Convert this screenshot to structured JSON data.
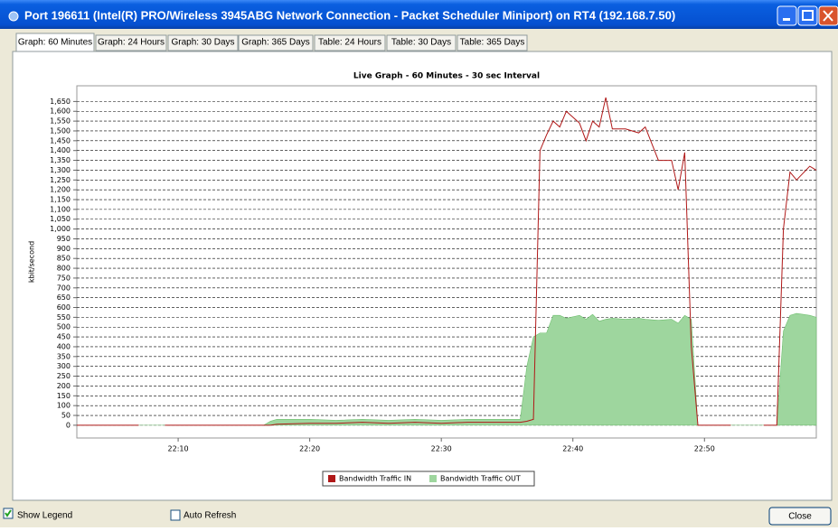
{
  "window": {
    "title": "Port 196611 (Intel(R) PRO/Wireless 3945ABG Network Connection - Packet Scheduler Miniport) on RT4 (192.168.7.50)"
  },
  "tabs": [
    "Graph: 60 Minutes",
    "Graph: 24 Hours",
    "Graph: 30 Days",
    "Graph: 365 Days",
    "Table: 24 Hours",
    "Table: 30 Days",
    "Table: 365 Days"
  ],
  "active_tab": 0,
  "chart_data": {
    "type": "line",
    "title": "Live Graph - 60 Minutes - 30 sec Interval",
    "y_label": "kbit/second",
    "x": [
      1322.3,
      1327,
      1328,
      1329,
      1336.5,
      1337,
      1337.5,
      1340,
      1342,
      1344,
      1346,
      1348,
      1350,
      1352,
      1354,
      1356,
      1356.5,
      1357,
      1357.5,
      1358,
      1358.5,
      1359,
      1359.5,
      1360.5,
      1361,
      1361.5,
      1362,
      1362.5,
      1363,
      1364,
      1365,
      1365.5,
      1366.5,
      1367.5,
      1368,
      1368.5,
      1369,
      1369.5,
      1372,
      1373,
      1374.5,
      1375.5,
      1376,
      1376.5,
      1377,
      1378,
      1378.5
    ],
    "series": [
      {
        "name": "Bandwidth Traffic IN",
        "color": "#b01818",
        "style": "line",
        "values": [
          0,
          0,
          null,
          0,
          0,
          0,
          5,
          10,
          10,
          15,
          10,
          15,
          10,
          15,
          15,
          15,
          20,
          30,
          1400,
          1480,
          1550,
          1520,
          1600,
          1540,
          1450,
          1550,
          1520,
          1670,
          1510,
          1510,
          1490,
          1520,
          1350,
          1350,
          1200,
          1390,
          400,
          0,
          0,
          null,
          0,
          0,
          1000,
          1290,
          1250,
          1320,
          1300
        ]
      },
      {
        "name": "Bandwidth Traffic OUT",
        "color": "#9ed69e",
        "style": "area",
        "values": [
          0,
          0,
          0,
          0,
          0,
          20,
          30,
          30,
          25,
          30,
          25,
          30,
          25,
          30,
          30,
          30,
          300,
          450,
          470,
          470,
          560,
          560,
          545,
          560,
          540,
          565,
          530,
          540,
          545,
          540,
          545,
          540,
          535,
          540,
          520,
          560,
          540,
          0,
          0,
          0,
          0,
          0,
          480,
          560,
          570,
          560,
          550
        ]
      }
    ],
    "xlim": [
      1322.3,
      1378.5
    ],
    "xticks": [
      {
        "value": 1330,
        "label": "22:10"
      },
      {
        "value": 1340,
        "label": "22:20"
      },
      {
        "value": 1350,
        "label": "22:30"
      },
      {
        "value": 1360,
        "label": "22:40"
      },
      {
        "value": 1370,
        "label": "22:50"
      }
    ],
    "ylim": [
      -65,
      1730
    ],
    "yticks": [
      0,
      50,
      100,
      150,
      200,
      250,
      300,
      350,
      400,
      450,
      500,
      550,
      600,
      650,
      700,
      750,
      800,
      850,
      900,
      950,
      {
        "value": 1000,
        "label": "1,000"
      },
      {
        "value": 1050,
        "label": "1,050"
      },
      {
        "value": 1100,
        "label": "1,100"
      },
      {
        "value": 1150,
        "label": "1,150"
      },
      {
        "value": 1200,
        "label": "1,200"
      },
      {
        "value": 1250,
        "label": "1,250"
      },
      {
        "value": 1300,
        "label": "1,300"
      },
      {
        "value": 1350,
        "label": "1,350"
      },
      {
        "value": 1400,
        "label": "1,400"
      },
      {
        "value": 1450,
        "label": "1,450"
      },
      {
        "value": 1500,
        "label": "1,500"
      },
      {
        "value": 1550,
        "label": "1,550"
      },
      {
        "value": 1600,
        "label": "1,600"
      },
      {
        "value": 1650,
        "label": "1,650"
      }
    ],
    "grid": true
  },
  "controls": {
    "show_legend": {
      "label": "Show Legend",
      "checked": true
    },
    "auto_refresh": {
      "label": "Auto Refresh",
      "checked": false
    },
    "close": "Close"
  }
}
